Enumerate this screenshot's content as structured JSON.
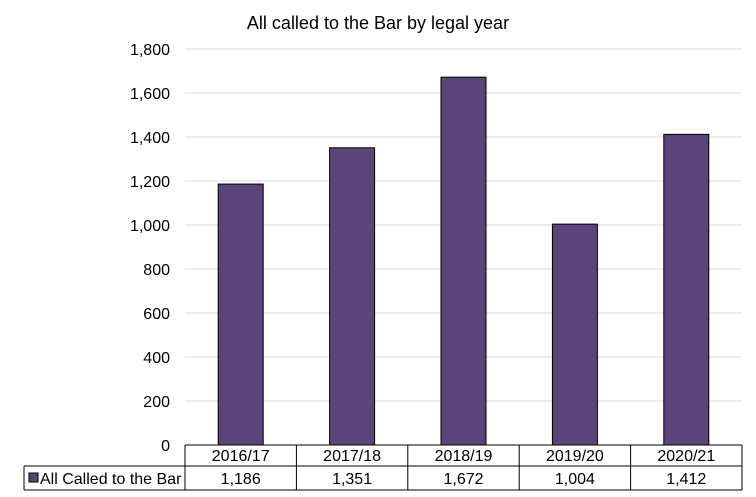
{
  "chart_data": {
    "type": "bar",
    "title": "All called to the Bar by legal year",
    "categories": [
      "2016/17",
      "2017/18",
      "2018/19",
      "2019/20",
      "2020/21"
    ],
    "series": [
      {
        "name": "All Called to the Bar",
        "values": [
          1186,
          1351,
          1672,
          1004,
          1412
        ]
      }
    ],
    "table_values": [
      "1,186",
      "1,351",
      "1,672",
      "1,004",
      "1,412"
    ],
    "y_ticks": [
      "0",
      "200",
      "400",
      "600",
      "800",
      "1,000",
      "1,200",
      "1,400",
      "1,600",
      "1,800"
    ],
    "ylim": [
      0,
      1800
    ],
    "grid": true,
    "legend": "data-table",
    "bar_color": "#5a4479",
    "gridline_color": "#d9d9d9"
  }
}
